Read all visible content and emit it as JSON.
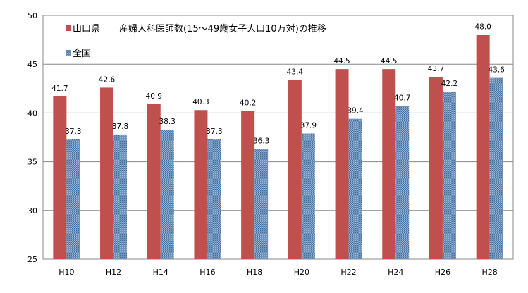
{
  "chart_data": {
    "type": "bar",
    "title": "",
    "xlabel": "",
    "ylabel": "",
    "categories": [
      "H10",
      "H12",
      "H14",
      "H16",
      "H18",
      "H20",
      "H22",
      "H24",
      "H26",
      "H28"
    ],
    "series": [
      {
        "name": "山口県",
        "values": [
          41.7,
          42.6,
          40.9,
          40.3,
          40.2,
          43.4,
          44.5,
          44.5,
          43.7,
          48.0
        ],
        "color": "#c0504d",
        "pattern": "solid"
      },
      {
        "name": "全国",
        "values": [
          37.3,
          37.8,
          38.3,
          37.3,
          36.3,
          37.9,
          39.4,
          40.7,
          42.2,
          43.6
        ],
        "color": "#4f81bd",
        "pattern": "checker"
      }
    ],
    "legend_title_text": "産婦人科医師数(15～49歳女子人口10万対)の推移",
    "ylim": [
      25,
      50
    ],
    "yticks": [
      25,
      30,
      35,
      40,
      45,
      50
    ],
    "grid": true,
    "legend_position": "top-left"
  }
}
